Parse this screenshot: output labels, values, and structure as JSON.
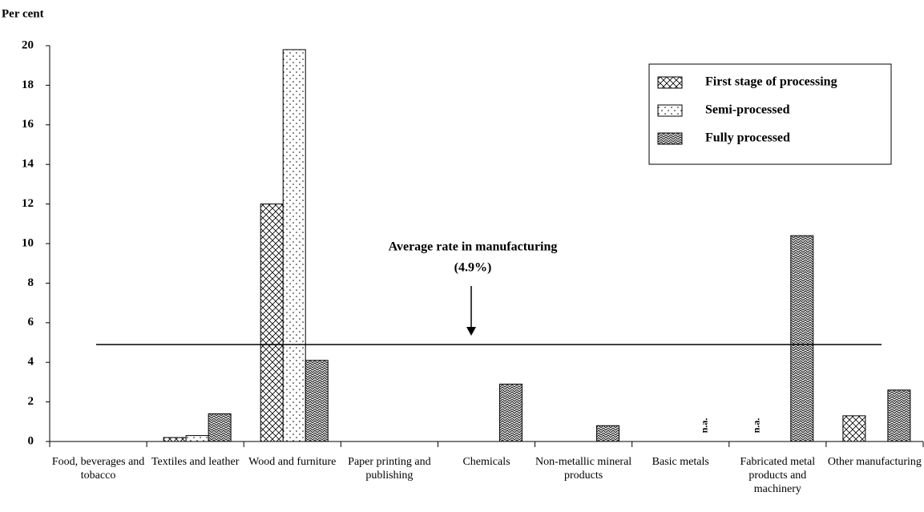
{
  "chart_data": {
    "type": "bar",
    "y_label": "Per cent",
    "categories": [
      "Food, beverages and tobacco",
      "Textiles and leather",
      "Wood and furniture",
      "Paper printing and publishing",
      "Chemicals",
      "Non-metallic mineral products",
      "Basic metals",
      "Fabricated metal products and machinery",
      "Other manufacturing"
    ],
    "series": [
      {
        "name": "First stage of processing",
        "color": "#000000",
        "pattern": "crosshatch",
        "values": [
          null,
          0.2,
          12,
          null,
          null,
          null,
          null,
          null,
          1.3
        ],
        "value_labels": [
          null,
          null,
          null,
          null,
          null,
          null,
          null,
          "n.a.",
          null
        ]
      },
      {
        "name": "Semi-processed",
        "color": "#000000",
        "pattern": "dots",
        "values": [
          null,
          0.3,
          19.8,
          null,
          null,
          null,
          null,
          null,
          null
        ]
      },
      {
        "name": "Fully processed",
        "color": "#000000",
        "pattern": "zigzag",
        "values": [
          null,
          1.4,
          4.1,
          null,
          2.9,
          0.8,
          null,
          10.4,
          2.6
        ],
        "value_labels": [
          null,
          null,
          null,
          null,
          null,
          null,
          "n.a.",
          null,
          null
        ]
      }
    ],
    "reference_line": {
      "value": 4.9,
      "label": [
        "Average rate in manufacturing",
        "(4.9%)"
      ]
    },
    "ylim": [
      0,
      20
    ],
    "yticks": [
      0,
      2,
      4,
      6,
      8,
      10,
      12,
      14,
      16,
      18,
      20
    ],
    "grid": false,
    "legend": "upper right"
  }
}
